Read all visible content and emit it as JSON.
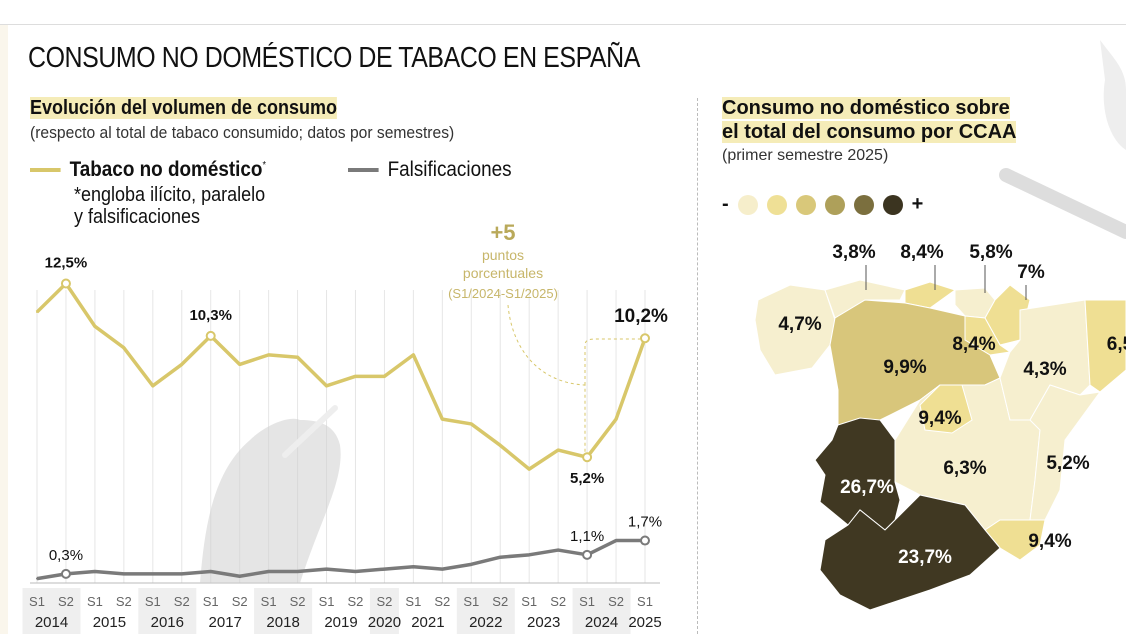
{
  "title": "CONSUMO NO DOMÉSTICO DE TABACO EN ESPAÑA",
  "chart_section": {
    "heading": "Evolución del volumen de consumo",
    "subheading": "(respecto al total de tabaco consumido; datos por semestres)",
    "legend": [
      {
        "label": "Tabaco no doméstico",
        "marker": "*",
        "color": "#d8c76a"
      },
      {
        "label": "Falsificaciones",
        "color": "#7a7a7a"
      }
    ],
    "footnote_line1": "*engloba ilícito, paralelo",
    "footnote_line2": "y falsificaciones",
    "annotation": {
      "big": "+5",
      "line1": "puntos",
      "line2": "porcentuales",
      "line3": "(S1/2024-S1/2025)"
    }
  },
  "chart_data": {
    "type": "line",
    "x": [
      "S1",
      "S2",
      "S1",
      "S2",
      "S1",
      "S2",
      "S1",
      "S2",
      "S1",
      "S2",
      "S1",
      "S2",
      "S2",
      "S1",
      "S2",
      "S1",
      "S2",
      "S1",
      "S2",
      "S1",
      "S2",
      "S1"
    ],
    "years": [
      {
        "label": "2014",
        "count": 2
      },
      {
        "label": "2015",
        "count": 2
      },
      {
        "label": "2016",
        "count": 2
      },
      {
        "label": "2017",
        "count": 2
      },
      {
        "label": "2018",
        "count": 2
      },
      {
        "label": "2019",
        "count": 2
      },
      {
        "label": "2020",
        "count": 1
      },
      {
        "label": "2021",
        "count": 2
      },
      {
        "label": "2022",
        "count": 2
      },
      {
        "label": "2023",
        "count": 2
      },
      {
        "label": "2024",
        "count": 2
      },
      {
        "label": "2025",
        "count": 1
      }
    ],
    "ylim": [
      0,
      13
    ],
    "grid": "vertical",
    "series": [
      {
        "name": "Tabaco no doméstico",
        "color": "#d8c76a",
        "values": [
          11.3,
          12.5,
          10.7,
          9.8,
          8.2,
          9.1,
          10.3,
          9.1,
          9.5,
          9.4,
          8.2,
          8.6,
          8.6,
          9.5,
          6.8,
          6.6,
          5.7,
          4.7,
          5.5,
          5.2,
          6.8,
          10.2
        ]
      },
      {
        "name": "Falsificaciones",
        "color": "#7a7a7a",
        "values": [
          0.1,
          0.3,
          0.4,
          0.3,
          0.3,
          0.3,
          0.4,
          0.2,
          0.4,
          0.4,
          0.5,
          0.4,
          0.5,
          0.6,
          0.5,
          0.7,
          1.0,
          1.1,
          1.3,
          1.1,
          1.7,
          1.7
        ]
      }
    ],
    "labels": [
      {
        "series": 0,
        "index": 1,
        "text": "12,5%"
      },
      {
        "series": 0,
        "index": 6,
        "text": "10,3%"
      },
      {
        "series": 0,
        "index": 19,
        "text": "5,2%"
      },
      {
        "series": 0,
        "index": 21,
        "text": "10,2%"
      },
      {
        "series": 1,
        "index": 1,
        "text": "0,3%"
      },
      {
        "series": 1,
        "index": 19,
        "text": "1,1%"
      },
      {
        "series": 1,
        "index": 21,
        "text": "1,7%"
      }
    ]
  },
  "map_section": {
    "heading_line1": "Consumo no doméstico sobre",
    "heading_line2": "el total del consumo por CCAA",
    "subheading": "(primer semestre 2025)",
    "scale_min": "-",
    "scale_max": "+",
    "scale_colors": [
      "#f6eecb",
      "#efe096",
      "#d9c87a",
      "#aea05a",
      "#7b6f3e",
      "#3b3420"
    ],
    "regions": [
      {
        "value": "4,7%",
        "level": 0
      },
      {
        "value": "3,8%",
        "level": 0
      },
      {
        "value": "8,4%",
        "level": 1
      },
      {
        "value": "5,8%",
        "level": 0
      },
      {
        "value": "7%",
        "level": 1
      },
      {
        "value": "8,4%",
        "level": 1
      },
      {
        "value": "9,9%",
        "level": 2
      },
      {
        "value": "6,3%",
        "level": 0
      },
      {
        "value": "9,4%",
        "level": 1
      },
      {
        "value": "4,3%",
        "level": 0
      },
      {
        "value": "6,5",
        "level": 1
      },
      {
        "value": "5,2%",
        "level": 0
      },
      {
        "value": "9,4%",
        "level": 1
      },
      {
        "value": "26,7%",
        "level": 5
      },
      {
        "value": "23,7%",
        "level": 5
      }
    ]
  }
}
